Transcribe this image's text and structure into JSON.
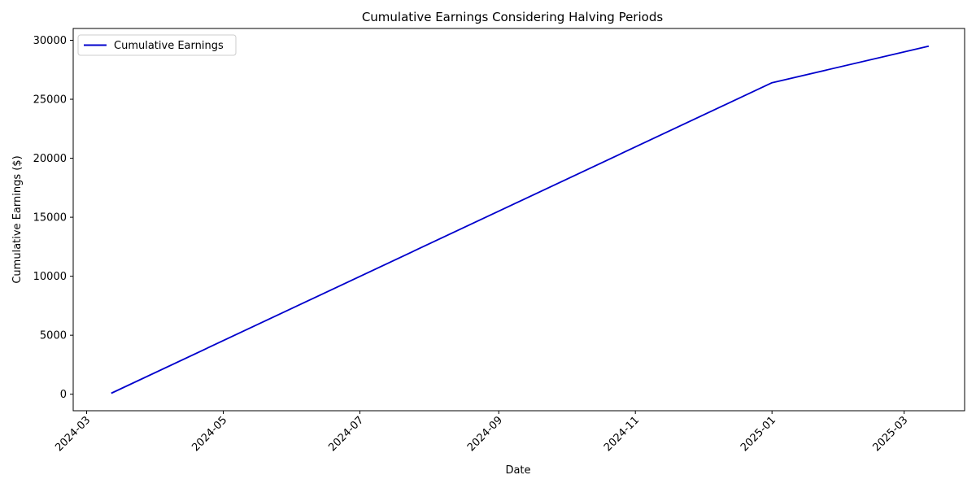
{
  "chart_data": {
    "type": "line",
    "title": "Cumulative Earnings Considering Halving Periods",
    "xlabel": "Date",
    "ylabel": "Cumulative Earnings ($)",
    "x_type": "date",
    "xlim": [
      "2024-02-24",
      "2025-03-28"
    ],
    "ylim": [
      -1400,
      31000
    ],
    "x_ticks": [
      "2024-03",
      "2024-05",
      "2024-07",
      "2024-09",
      "2024-11",
      "2025-01",
      "2025-03"
    ],
    "y_ticks": [
      0,
      5000,
      10000,
      15000,
      20000,
      25000,
      30000
    ],
    "grid": false,
    "legend": "upper left",
    "series": [
      {
        "name": "Cumulative Earnings",
        "color": "#0000cc",
        "x": [
          "2024-03-12",
          "2025-01-01",
          "2025-03-12"
        ],
        "y": [
          80,
          26400,
          29500
        ]
      }
    ]
  }
}
